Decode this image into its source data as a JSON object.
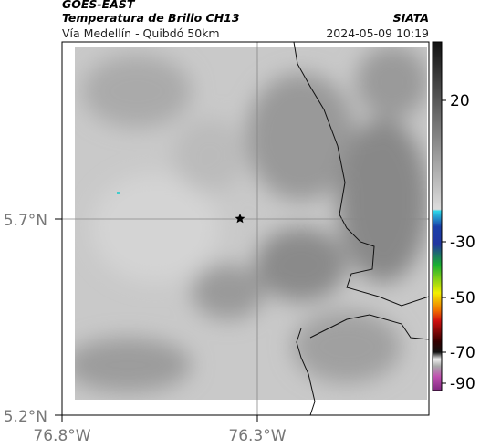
{
  "header": {
    "product": "GOES-EAST",
    "title": "Temperatura de Brillo CH13",
    "source": "SIATA",
    "subtitle": "Vía Medellín - Quibdó 50km",
    "timestamp": "2024-05-09 10:19"
  },
  "map": {
    "yticks": [
      "5.7°N",
      "5.2°N"
    ],
    "xticks": [
      "76.8°W",
      "76.3°W"
    ]
  },
  "colorbar": {
    "ticks": [
      20,
      -30,
      -50,
      -70,
      -90
    ]
  }
}
